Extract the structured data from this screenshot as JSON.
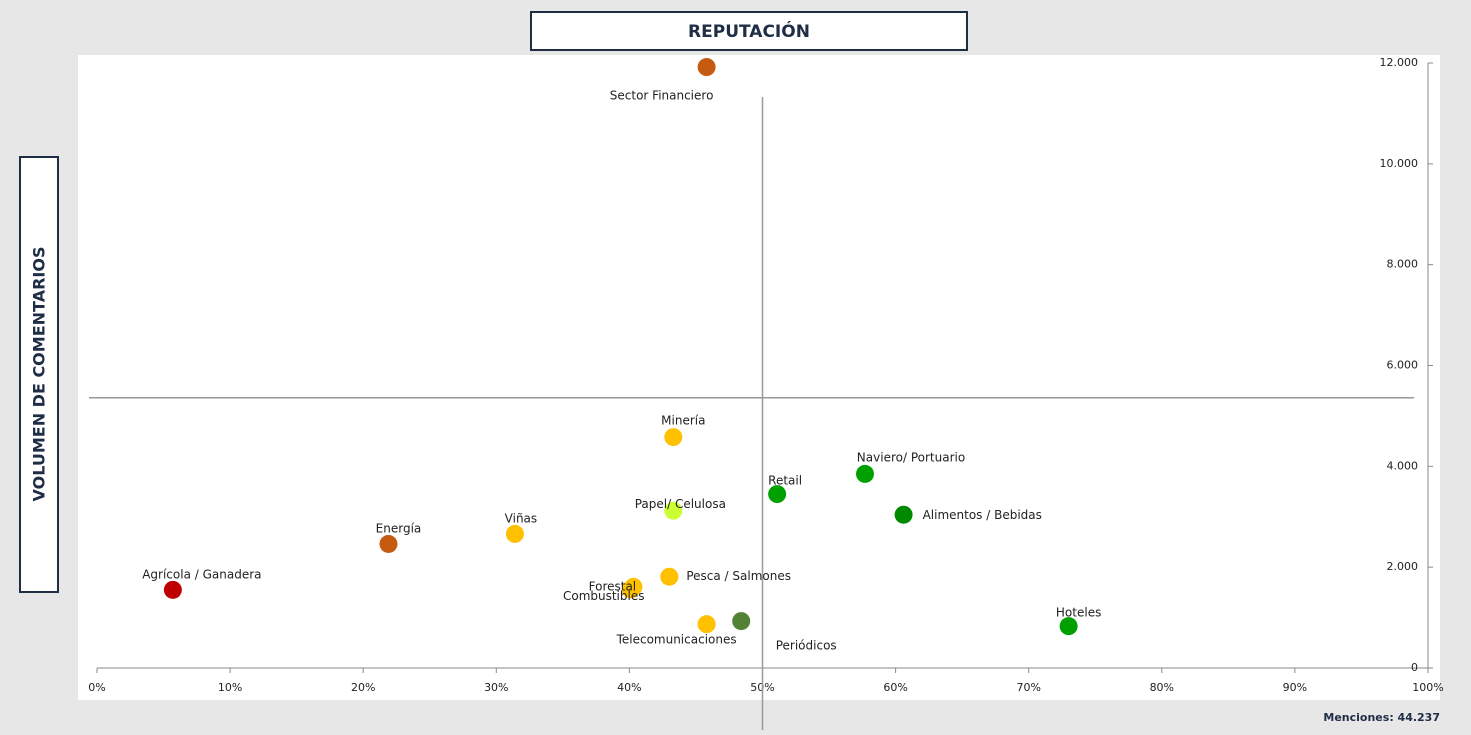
{
  "chart_data": {
    "type": "scatter",
    "title": "REPUTACIÓN",
    "y_label": "VOLUMEN DE COMENTARIOS",
    "note": "Menciones: 44.237",
    "labels": [
      "Sector Financiero",
      "Minería",
      "Naviero/ Portuario",
      "Retail",
      "Alimentos / Bebidas",
      "Papel/ Celulosa",
      "Viñas",
      "Energía",
      "Agrícola / Ganadera",
      "Pesca / Salmones",
      "Forestal",
      "Combustibles",
      "Telecomunicaciones",
      "Periódicos",
      "Hoteles"
    ],
    "x": [
      45.8,
      43.3,
      57.7,
      51.1,
      60.6,
      43.3,
      31.4,
      21.9,
      5.7,
      43.0,
      40.3,
      40.1,
      45.8,
      48.4,
      73.0
    ],
    "y": [
      11920,
      4580,
      3850,
      3450,
      3040,
      3120,
      2660,
      2460,
      1550,
      1810,
      1610,
      1560,
      870,
      930,
      830
    ],
    "colors": [
      "#c55a11",
      "#ffc000",
      "#00a000",
      "#00a000",
      "#008a00",
      "#ccff33",
      "#ffc000",
      "#c55a11",
      "#c00000",
      "#ffc000",
      "#ffc000",
      "#ffc000",
      "#ffc000",
      "#548235",
      "#00a000"
    ],
    "xlim": [
      0,
      100
    ],
    "ylim": [
      0,
      12000
    ],
    "xticks": [
      {
        "value": 0,
        "label": "0%"
      },
      {
        "value": 10,
        "label": "10%"
      },
      {
        "value": 20,
        "label": "20%"
      },
      {
        "value": 30,
        "label": "30%"
      },
      {
        "value": 40,
        "label": "40%"
      },
      {
        "value": 50,
        "label": "50%"
      },
      {
        "value": 60,
        "label": "60%"
      },
      {
        "value": 70,
        "label": "70%"
      },
      {
        "value": 80,
        "label": "80%"
      },
      {
        "value": 90,
        "label": "90%"
      },
      {
        "value": 100,
        "label": "100%"
      }
    ],
    "yticks": [
      0,
      {
        "value": 2000,
        "label": "2.000"
      },
      {
        "value": 4000,
        "label": "4.000"
      },
      {
        "value": 6000,
        "label": "6.000"
      },
      {
        "value": 8000,
        "label": "8.000"
      },
      {
        "value": 10000,
        "label": "10.000"
      },
      {
        "value": 12000,
        "label": "12.000"
      }
    ],
    "reference_lines": {
      "x": 50,
      "y": 5360
    }
  }
}
